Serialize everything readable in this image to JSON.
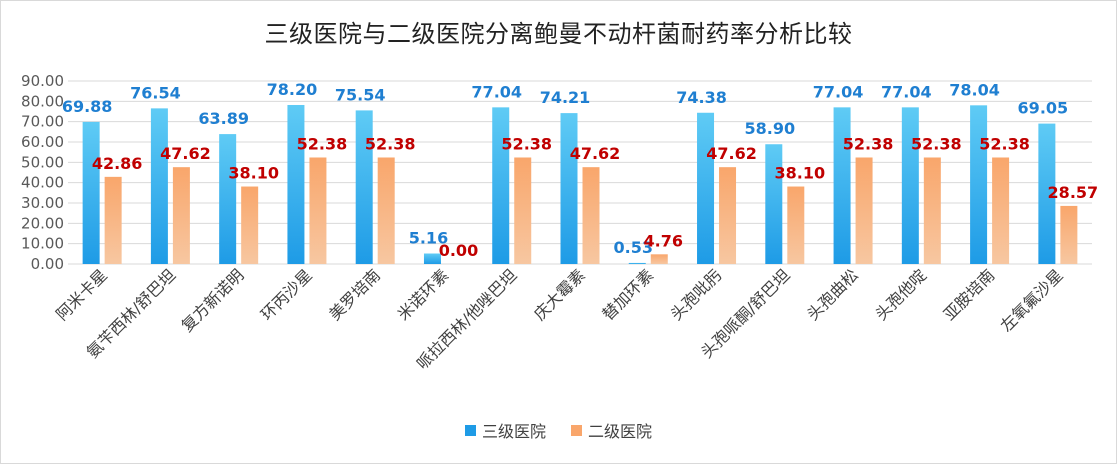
{
  "chart_data": {
    "type": "bar",
    "title": "三级医院与二级医院分离鲍曼不动杆菌耐药率分析比较",
    "categories": [
      "阿米卡星",
      "氨苄西林/舒巴坦",
      "复方新诺明",
      "环丙沙星",
      "美罗培南",
      "米诺环素",
      "哌拉西林/他唑巴坦",
      "庆大霉素",
      "替加环素",
      "头孢吡肟",
      "头孢哌酮/舒巴坦",
      "头孢曲松",
      "头孢他啶",
      "亚胺培南",
      "左氧氟沙星"
    ],
    "series": [
      {
        "name": "三级医院",
        "values": [
          69.88,
          76.54,
          63.89,
          78.2,
          75.54,
          5.16,
          77.04,
          74.21,
          0.53,
          74.38,
          58.9,
          77.04,
          77.04,
          78.04,
          69.05
        ],
        "labels": [
          "69.88",
          "76.54",
          "63.89",
          "78.20",
          "75.54",
          "5.16",
          "77.04",
          "74.21",
          "0.53",
          "74.38",
          "58.90",
          "77.04",
          "77.04",
          "78.04",
          "69.05"
        ]
      },
      {
        "name": "二级医院",
        "values": [
          42.86,
          47.62,
          38.1,
          52.38,
          52.38,
          0.0,
          52.38,
          47.62,
          4.76,
          47.62,
          38.1,
          52.38,
          52.38,
          52.38,
          28.57
        ],
        "labels": [
          "42.86",
          "47.62",
          "38.10",
          "52.38",
          "52.38",
          "0.00",
          "52.38",
          "47.62",
          "4.76",
          "47.62",
          "38.10",
          "52.38",
          "52.38",
          "52.38",
          "28.57"
        ]
      }
    ],
    "ylim": [
      0,
      90
    ],
    "yticks": [
      "0.00",
      "10.00",
      "20.00",
      "30.00",
      "40.00",
      "50.00",
      "60.00",
      "70.00",
      "80.00",
      "90.00"
    ],
    "grid": true,
    "legend": "bottom",
    "colors": {
      "s1_top": "#5fcbf5",
      "s1_bottom": "#1e9be6",
      "s1_label": "#1f7fd1",
      "s2_top": "#f9a66b",
      "s2_bottom": "#f7c7a1",
      "s2_label": "#c00000"
    }
  }
}
